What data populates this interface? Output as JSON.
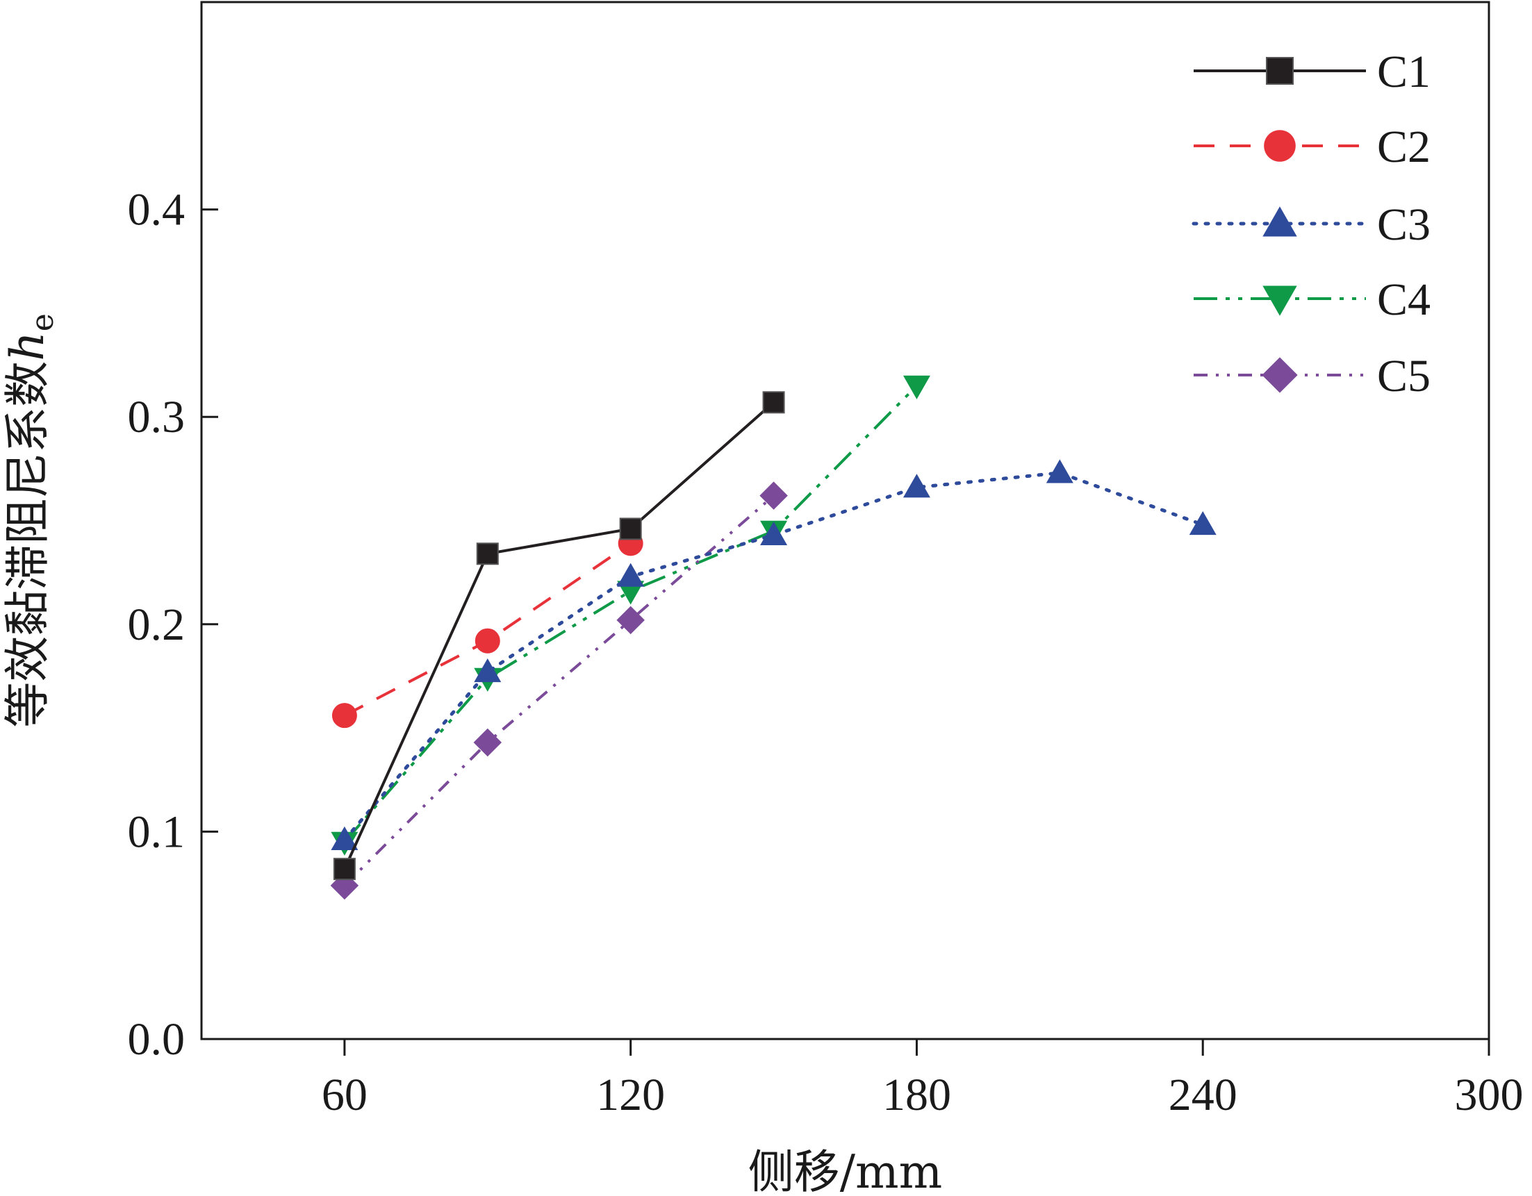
{
  "chart_data": {
    "type": "line",
    "xlabel": "侧移/mm",
    "ylabel": "等效黏滞阻尼系数",
    "ylabel_symbol": "h",
    "ylabel_subscript": "e",
    "xlim": [
      30,
      300
    ],
    "ylim": [
      0.0,
      0.5
    ],
    "xticks": [
      60,
      120,
      180,
      240,
      300
    ],
    "xtick_labels": [
      "60",
      "120",
      "180",
      "240",
      "300"
    ],
    "yticks": [
      0.0,
      0.1,
      0.2,
      0.3,
      0.4
    ],
    "ytick_labels": [
      "0.0",
      "0.1",
      "0.2",
      "0.3",
      "0.4"
    ],
    "grid": false,
    "legend_position": "top-right",
    "series": [
      {
        "name": "C1",
        "color": "#231f20",
        "marker": "square",
        "line": "solid",
        "x": [
          60,
          90,
          120,
          150
        ],
        "y": [
          0.082,
          0.234,
          0.246,
          0.307
        ]
      },
      {
        "name": "C2",
        "color": "#e8323a",
        "marker": "circle",
        "line": "dashed",
        "x": [
          60,
          90,
          120
        ],
        "y": [
          0.156,
          0.192,
          0.239
        ]
      },
      {
        "name": "C3",
        "color": "#2e4b9b",
        "marker": "triangle-up",
        "line": "dotted",
        "x": [
          60,
          90,
          120,
          150,
          180,
          210,
          240
        ],
        "y": [
          0.096,
          0.177,
          0.223,
          0.243,
          0.266,
          0.273,
          0.248
        ]
      },
      {
        "name": "C4",
        "color": "#0f9a48",
        "marker": "triangle-down",
        "line": "dash-dot-dot",
        "x": [
          60,
          90,
          120,
          150,
          180
        ],
        "y": [
          0.095,
          0.174,
          0.216,
          0.245,
          0.315
        ]
      },
      {
        "name": "C5",
        "color": "#7b4b9a",
        "marker": "diamond",
        "line": "dash-dot-dot-fine",
        "x": [
          60,
          90,
          120,
          150
        ],
        "y": [
          0.074,
          0.143,
          0.202,
          0.262
        ]
      }
    ]
  }
}
